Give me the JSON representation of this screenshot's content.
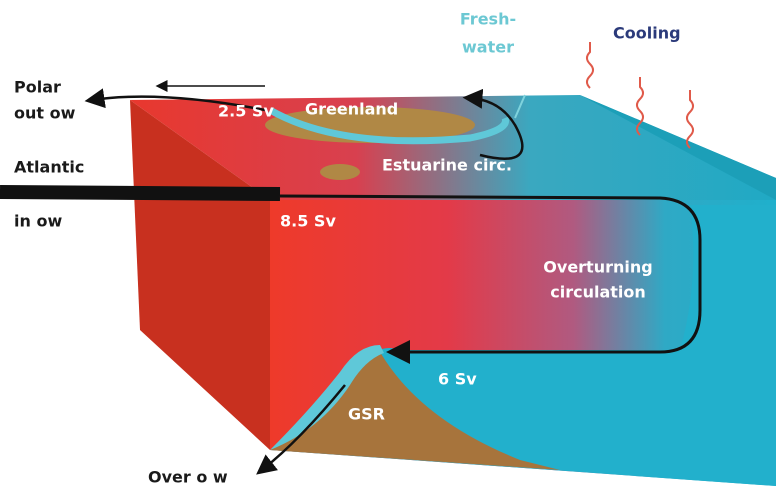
{
  "labels": {
    "freshwater": [
      "Fresh-",
      "water"
    ],
    "cooling": "Cooling",
    "polar_outflow": [
      "Polar",
      "out ow"
    ],
    "flow_polar": "2.5 Sv",
    "greenland": "Greenland",
    "atlantic_inflow": [
      "Atlantic",
      "in ow"
    ],
    "estuarine": "Estuarine circ.",
    "flow_inflow": "8.5 Sv",
    "overturning": [
      "Overturning",
      "circulation"
    ],
    "flow_overturning": "6 Sv",
    "gsr": "GSR",
    "overflow": "Over o w"
  }
}
